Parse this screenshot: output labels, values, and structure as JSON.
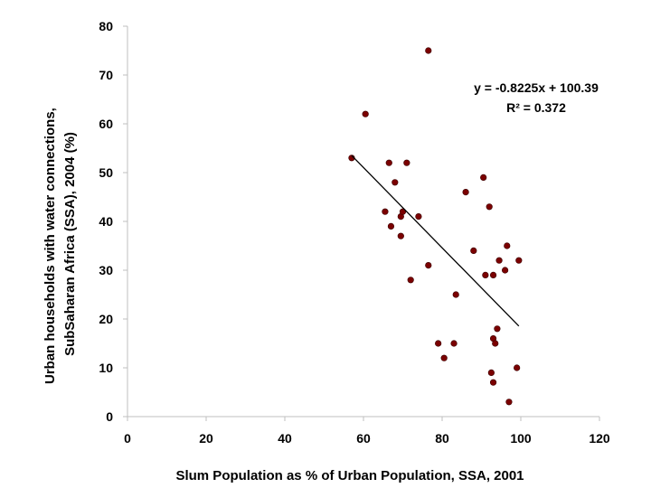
{
  "chart_data": {
    "type": "scatter",
    "title": "",
    "xlabel": "Slum Population as % of Urban Population, SSA, 2001",
    "ylabel_lines": [
      "Urban households with water connections,",
      "SubSaharan Africa (SSA), 2004  (%)"
    ],
    "xlim": [
      0,
      120
    ],
    "ylim": [
      0,
      80
    ],
    "xticks": [
      0,
      20,
      40,
      60,
      80,
      100,
      120
    ],
    "yticks": [
      0,
      10,
      20,
      30,
      40,
      50,
      60,
      70,
      80
    ],
    "grid": false,
    "colors": {
      "marker": "#7b0000",
      "trendline": "#000000"
    },
    "points": [
      {
        "x": 57,
        "y": 53
      },
      {
        "x": 60.5,
        "y": 62
      },
      {
        "x": 65.5,
        "y": 42
      },
      {
        "x": 66.5,
        "y": 52
      },
      {
        "x": 67,
        "y": 39
      },
      {
        "x": 68,
        "y": 48
      },
      {
        "x": 69.5,
        "y": 41
      },
      {
        "x": 70,
        "y": 42
      },
      {
        "x": 69.5,
        "y": 37
      },
      {
        "x": 71,
        "y": 52
      },
      {
        "x": 72,
        "y": 28
      },
      {
        "x": 74,
        "y": 41
      },
      {
        "x": 76.5,
        "y": 75
      },
      {
        "x": 76.5,
        "y": 31
      },
      {
        "x": 79,
        "y": 15
      },
      {
        "x": 80.5,
        "y": 12
      },
      {
        "x": 83,
        "y": 15
      },
      {
        "x": 83.5,
        "y": 25
      },
      {
        "x": 86,
        "y": 46
      },
      {
        "x": 88,
        "y": 34
      },
      {
        "x": 90.5,
        "y": 49
      },
      {
        "x": 91,
        "y": 29
      },
      {
        "x": 92,
        "y": 43
      },
      {
        "x": 92.5,
        "y": 9
      },
      {
        "x": 93,
        "y": 29
      },
      {
        "x": 93,
        "y": 16
      },
      {
        "x": 93.5,
        "y": 15
      },
      {
        "x": 93,
        "y": 7
      },
      {
        "x": 94,
        "y": 18
      },
      {
        "x": 94.5,
        "y": 32
      },
      {
        "x": 96,
        "y": 30
      },
      {
        "x": 96.5,
        "y": 35
      },
      {
        "x": 97,
        "y": 3
      },
      {
        "x": 99,
        "y": 10
      },
      {
        "x": 99.5,
        "y": 32
      }
    ],
    "trendline": {
      "slope": -0.8225,
      "intercept": 100.39,
      "x_range": [
        57,
        99.5
      ],
      "equation": "y = -0.8225x + 100.39",
      "r_squared": "R² = 0.372"
    }
  }
}
